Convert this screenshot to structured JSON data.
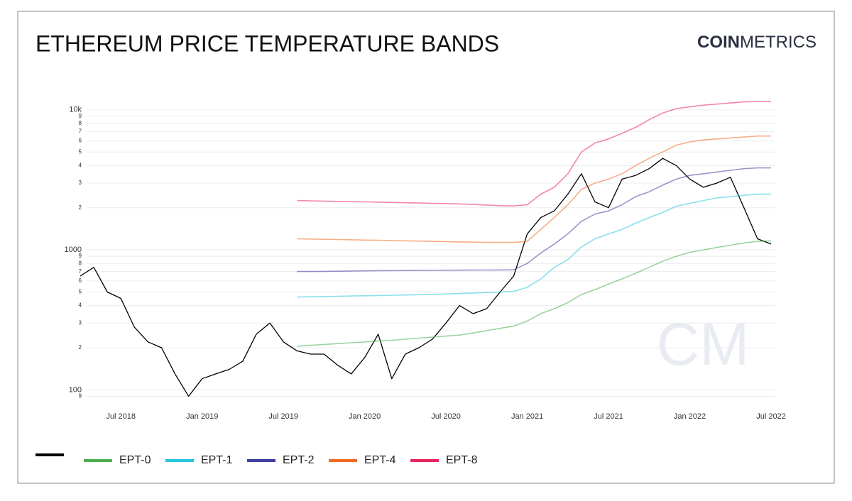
{
  "header": {
    "brand_strong": "COIN",
    "brand_light": "METRICS",
    "watermark": "CM"
  },
  "chart_data": {
    "type": "line",
    "title": "ETHEREUM PRICE TEMPERATURE BANDS",
    "x": [
      "2018-04",
      "2018-05",
      "2018-06",
      "2018-07",
      "2018-08",
      "2018-09",
      "2018-10",
      "2018-11",
      "2018-12",
      "2019-01",
      "2019-02",
      "2019-03",
      "2019-04",
      "2019-05",
      "2019-06",
      "2019-07",
      "2019-08",
      "2019-09",
      "2019-10",
      "2019-11",
      "2019-12",
      "2020-01",
      "2020-02",
      "2020-03",
      "2020-04",
      "2020-05",
      "2020-06",
      "2020-07",
      "2020-08",
      "2020-09",
      "2020-10",
      "2020-11",
      "2020-12",
      "2021-01",
      "2021-02",
      "2021-03",
      "2021-04",
      "2021-05",
      "2021-06",
      "2021-07",
      "2021-08",
      "2021-09",
      "2021-10",
      "2021-11",
      "2021-12",
      "2022-01",
      "2022-02",
      "2022-03",
      "2022-04",
      "2022-05",
      "2022-06",
      "2022-07"
    ],
    "xlim": [
      "2018-04",
      "2022-07"
    ],
    "xticks": [
      {
        "value": "2018-07",
        "label": "Jul 2018"
      },
      {
        "value": "2019-01",
        "label": "Jan 2019"
      },
      {
        "value": "2019-07",
        "label": "Jul 2019"
      },
      {
        "value": "2020-01",
        "label": "Jan 2020"
      },
      {
        "value": "2020-07",
        "label": "Jul 2020"
      },
      {
        "value": "2021-01",
        "label": "Jan 2021"
      },
      {
        "value": "2021-07",
        "label": "Jul 2021"
      },
      {
        "value": "2022-01",
        "label": "Jan 2022"
      },
      {
        "value": "2022-07",
        "label": "Jul 2022"
      }
    ],
    "log_scale": true,
    "grid": true,
    "ylim": [
      75,
      14000
    ],
    "yticks": [
      {
        "value": 90,
        "label": "9"
      },
      100,
      {
        "value": 200,
        "label": "2"
      },
      {
        "value": 300,
        "label": "3"
      },
      {
        "value": 400,
        "label": "4"
      },
      {
        "value": 500,
        "label": "5"
      },
      {
        "value": 600,
        "label": "6"
      },
      {
        "value": 700,
        "label": "7"
      },
      {
        "value": 800,
        "label": "8"
      },
      {
        "value": 900,
        "label": "9"
      },
      1000,
      {
        "value": 2000,
        "label": "2"
      },
      {
        "value": 3000,
        "label": "3"
      },
      {
        "value": 4000,
        "label": "4"
      },
      {
        "value": 5000,
        "label": "5"
      },
      {
        "value": 6000,
        "label": "6"
      },
      {
        "value": 7000,
        "label": "7"
      },
      {
        "value": 8000,
        "label": "8"
      },
      {
        "value": 9000,
        "label": "9"
      },
      {
        "value": 10000,
        "label": "10k"
      }
    ],
    "legend": "bottom-left",
    "series": [
      {
        "color": "#000000",
        "values": [
          650,
          750,
          500,
          450,
          280,
          220,
          200,
          130,
          90,
          120,
          130,
          140,
          160,
          250,
          300,
          220,
          190,
          180,
          180,
          150,
          130,
          170,
          250,
          120,
          180,
          200,
          230,
          300,
          400,
          350,
          380,
          500,
          650,
          1300,
          1700,
          1900,
          2500,
          3500,
          2200,
          2000,
          3200,
          3400,
          3800,
          4500,
          4000,
          3200,
          2800,
          3000,
          3300,
          2000,
          1200,
          1100
        ]
      },
      {
        "name": "EPT-0",
        "color": "#4caf50",
        "values": [
          null,
          null,
          null,
          null,
          null,
          null,
          null,
          null,
          null,
          null,
          null,
          null,
          null,
          null,
          null,
          null,
          205,
          208,
          211,
          214,
          217,
          220,
          223,
          226,
          230,
          234,
          238,
          242,
          246,
          255,
          265,
          275,
          285,
          310,
          350,
          380,
          420,
          480,
          520,
          570,
          620,
          680,
          750,
          830,
          900,
          960,
          1000,
          1040,
          1080,
          1120,
          1150,
          1160
        ]
      },
      {
        "name": "EPT-1",
        "color": "#26c6da",
        "values": [
          null,
          null,
          null,
          null,
          null,
          null,
          null,
          null,
          null,
          null,
          null,
          null,
          null,
          null,
          null,
          null,
          460,
          462,
          464,
          466,
          468,
          470,
          472,
          474,
          476,
          478,
          480,
          484,
          488,
          492,
          496,
          500,
          505,
          540,
          620,
          750,
          850,
          1050,
          1200,
          1300,
          1400,
          1550,
          1700,
          1850,
          2050,
          2150,
          2250,
          2350,
          2400,
          2450,
          2500,
          2500
        ]
      },
      {
        "name": "EPT-2",
        "color": "#3f3fa0",
        "values": [
          null,
          null,
          null,
          null,
          null,
          null,
          null,
          null,
          null,
          null,
          null,
          null,
          null,
          null,
          null,
          null,
          700,
          700,
          702,
          704,
          706,
          708,
          710,
          711,
          712,
          713,
          714,
          715,
          716,
          717,
          718,
          719,
          720,
          800,
          950,
          1100,
          1300,
          1600,
          1800,
          1900,
          2100,
          2400,
          2600,
          2900,
          3200,
          3400,
          3500,
          3600,
          3700,
          3800,
          3850,
          3850
        ]
      },
      {
        "name": "EPT-4",
        "color": "#f06a25",
        "values": [
          null,
          null,
          null,
          null,
          null,
          null,
          null,
          null,
          null,
          null,
          null,
          null,
          null,
          null,
          null,
          null,
          1200,
          1195,
          1190,
          1185,
          1180,
          1175,
          1170,
          1165,
          1160,
          1155,
          1150,
          1145,
          1140,
          1135,
          1130,
          1130,
          1130,
          1150,
          1400,
          1700,
          2100,
          2700,
          3000,
          3200,
          3500,
          4000,
          4500,
          5000,
          5600,
          5900,
          6100,
          6200,
          6300,
          6400,
          6500,
          6500
        ]
      },
      {
        "name": "EPT-8",
        "color": "#e8245f",
        "values": [
          null,
          null,
          null,
          null,
          null,
          null,
          null,
          null,
          null,
          null,
          null,
          null,
          null,
          null,
          null,
          null,
          2250,
          2240,
          2230,
          2220,
          2210,
          2200,
          2190,
          2180,
          2170,
          2160,
          2150,
          2140,
          2130,
          2110,
          2090,
          2070,
          2060,
          2100,
          2500,
          2800,
          3500,
          5000,
          5800,
          6200,
          6800,
          7500,
          8500,
          9500,
          10200,
          10500,
          10800,
          11000,
          11200,
          11400,
          11500,
          11500
        ]
      }
    ]
  }
}
